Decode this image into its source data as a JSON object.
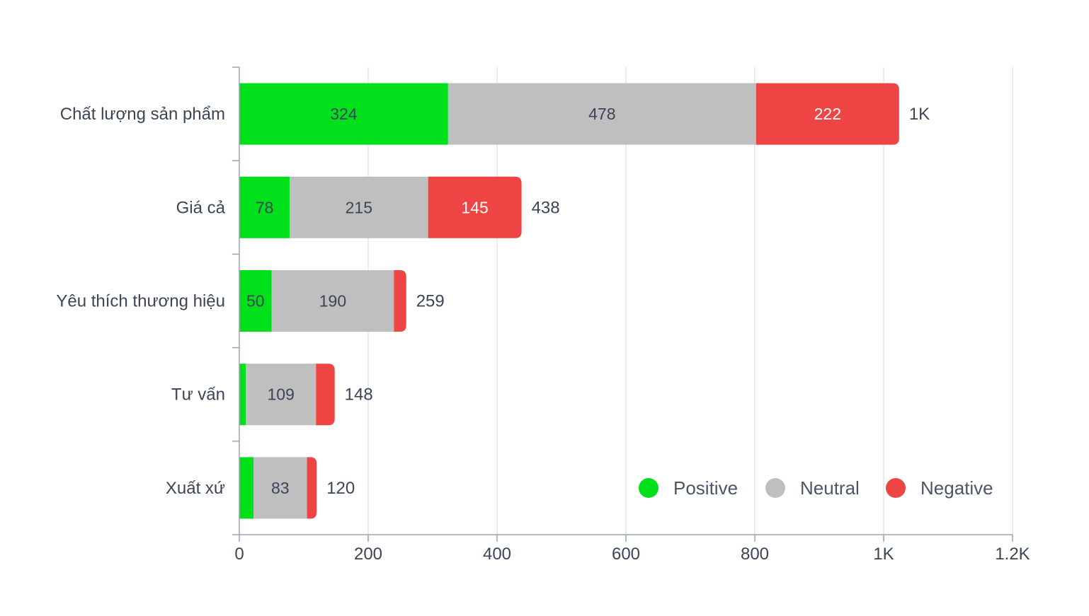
{
  "chart_data": {
    "type": "bar",
    "orientation": "horizontal",
    "stacked": true,
    "categories": [
      "Chất lượng sản phẩm",
      "Giá cả",
      "Yêu thích thương hiệu",
      "Tư vấn",
      "Xuất xứ"
    ],
    "series": [
      {
        "name": "Positive",
        "color": "#00e01b",
        "values": [
          324,
          78,
          50,
          10,
          22
        ],
        "labels": [
          "324",
          "78",
          "50",
          "",
          ""
        ]
      },
      {
        "name": "Neutral",
        "color": "#bfbfbf",
        "values": [
          478,
          215,
          190,
          109,
          83
        ],
        "labels": [
          "478",
          "215",
          "190",
          "109",
          "83"
        ]
      },
      {
        "name": "Negative",
        "color": "#ef4444",
        "values": [
          222,
          145,
          19,
          29,
          15
        ],
        "labels": [
          "222",
          "145",
          "",
          "",
          ""
        ]
      }
    ],
    "totals": [
      "1K",
      "438",
      "259",
      "148",
      "120"
    ],
    "xticks": [
      "0",
      "200",
      "400",
      "600",
      "800",
      "1K",
      "1.2K"
    ],
    "xlim": [
      0,
      1200
    ],
    "grid": true,
    "legend_position": "bottom-right",
    "title": "",
    "xlabel": "",
    "ylabel": ""
  }
}
